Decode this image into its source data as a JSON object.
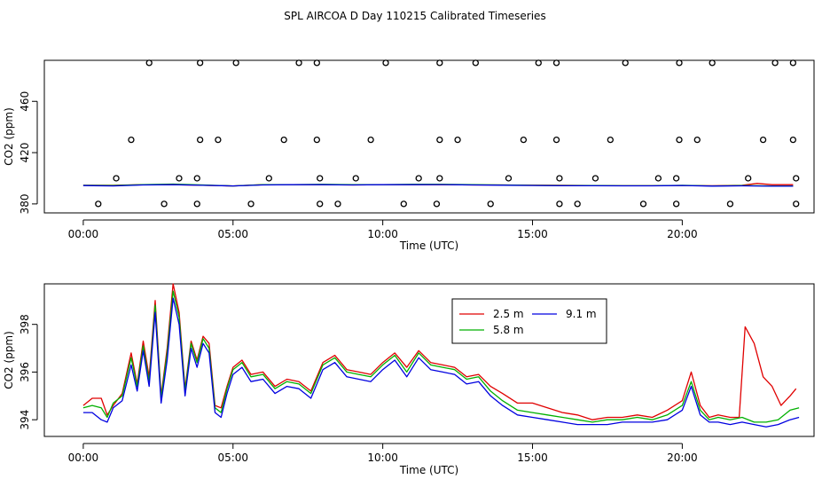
{
  "title": "SPL AIRCOA D  Day 110215  Calibrated Timeseries",
  "colors": {
    "red": "#e00000",
    "green": "#00b000",
    "blue": "#0000e0",
    "black": "#000000"
  },
  "chart_data": [
    {
      "type": "scatter",
      "xlabel": "Time (UTC)",
      "ylabel": "CO2 (ppm)",
      "xlim": [
        -1.3,
        24.4
      ],
      "ylim": [
        373,
        492
      ],
      "xticks": [
        0,
        5,
        10,
        15,
        20
      ],
      "xtick_labels": [
        "00:00",
        "05:00",
        "10:00",
        "15:00",
        "20:00"
      ],
      "yticks": [
        380,
        420,
        460
      ],
      "ytick_labels": [
        "380",
        "420",
        "460"
      ],
      "points": [
        [
          0.5,
          380
        ],
        [
          2.7,
          380
        ],
        [
          3.8,
          380
        ],
        [
          5.6,
          380
        ],
        [
          7.9,
          380
        ],
        [
          8.5,
          380
        ],
        [
          10.7,
          380
        ],
        [
          11.8,
          380
        ],
        [
          13.6,
          380
        ],
        [
          15.9,
          380
        ],
        [
          16.5,
          380
        ],
        [
          18.7,
          380
        ],
        [
          19.8,
          380
        ],
        [
          21.6,
          380
        ],
        [
          23.8,
          380
        ],
        [
          1.1,
          400
        ],
        [
          3.2,
          400
        ],
        [
          3.8,
          400
        ],
        [
          6.2,
          400
        ],
        [
          7.9,
          400
        ],
        [
          9.1,
          400
        ],
        [
          11.2,
          400
        ],
        [
          11.9,
          400
        ],
        [
          14.2,
          400
        ],
        [
          15.9,
          400
        ],
        [
          17.1,
          400
        ],
        [
          19.2,
          400
        ],
        [
          19.8,
          400
        ],
        [
          22.2,
          400
        ],
        [
          23.8,
          400
        ],
        [
          1.6,
          430
        ],
        [
          3.9,
          430
        ],
        [
          4.5,
          430
        ],
        [
          6.7,
          430
        ],
        [
          7.8,
          430
        ],
        [
          9.6,
          430
        ],
        [
          11.9,
          430
        ],
        [
          12.5,
          430
        ],
        [
          14.7,
          430
        ],
        [
          15.8,
          430
        ],
        [
          17.6,
          430
        ],
        [
          19.9,
          430
        ],
        [
          20.5,
          430
        ],
        [
          22.7,
          430
        ],
        [
          23.7,
          430
        ],
        [
          2.2,
          490
        ],
        [
          3.9,
          490
        ],
        [
          5.1,
          490
        ],
        [
          7.2,
          490
        ],
        [
          7.8,
          490
        ],
        [
          10.1,
          490
        ],
        [
          11.9,
          490
        ],
        [
          13.1,
          490
        ],
        [
          15.2,
          490
        ],
        [
          15.8,
          490
        ],
        [
          18.1,
          490
        ],
        [
          19.9,
          490
        ],
        [
          21.0,
          490
        ],
        [
          23.1,
          490
        ],
        [
          23.7,
          490
        ]
      ],
      "series": [
        {
          "color": "red",
          "x": [
            0,
            1,
            2,
            3,
            4,
            5,
            6,
            7,
            8,
            9,
            10,
            11,
            12,
            13,
            14,
            15,
            16,
            17,
            18,
            19,
            20,
            21,
            22,
            22.5,
            23,
            23.7
          ],
          "values": [
            394.5,
            394.5,
            395,
            395,
            394.5,
            394,
            395,
            395,
            395,
            394.8,
            395,
            395,
            395,
            394.8,
            394.8,
            394.6,
            394.5,
            394.3,
            394.2,
            394.2,
            394.4,
            394.2,
            394.5,
            396,
            395,
            395
          ]
        },
        {
          "color": "green",
          "x": [
            0,
            1,
            2,
            3,
            4,
            5,
            6,
            7,
            8,
            9,
            10,
            11,
            12,
            13,
            14,
            15,
            16,
            17,
            18,
            19,
            20,
            21,
            22,
            23,
            23.7
          ],
          "values": [
            394.5,
            394.3,
            395,
            395.5,
            394.8,
            394,
            395,
            395,
            395.3,
            395,
            395,
            395.3,
            395.3,
            395,
            394.8,
            394.5,
            394.3,
            394.3,
            394.2,
            394.2,
            394.5,
            394,
            394.3,
            394,
            394
          ]
        },
        {
          "color": "blue",
          "x": [
            0,
            1,
            2,
            3,
            4,
            5,
            6,
            7,
            8,
            9,
            10,
            11,
            12,
            13,
            14,
            15,
            16,
            17,
            18,
            19,
            20,
            21,
            22,
            23,
            23.7
          ],
          "values": [
            394.3,
            394,
            394.8,
            395,
            394.5,
            394,
            394.8,
            395,
            395,
            394.8,
            395,
            395,
            395.1,
            394.8,
            394.6,
            394.4,
            394.2,
            394.2,
            394.1,
            394.1,
            394.4,
            393.9,
            394.1,
            393.8,
            393.8
          ]
        }
      ]
    },
    {
      "type": "line",
      "xlabel": "Time (UTC)",
      "ylabel": "CO2 (ppm)",
      "xlim": [
        -1.3,
        24.4
      ],
      "ylim": [
        393.3,
        399.7
      ],
      "xticks": [
        0,
        5,
        10,
        15,
        20
      ],
      "xtick_labels": [
        "00:00",
        "05:00",
        "10:00",
        "15:00",
        "20:00"
      ],
      "yticks": [
        394,
        396,
        398
      ],
      "ytick_labels": [
        "394",
        "396",
        "398"
      ],
      "legend_position": "top-center",
      "series": [
        {
          "name": "2.5 m",
          "color": "red",
          "x": [
            0,
            0.3,
            0.6,
            0.8,
            1.0,
            1.3,
            1.6,
            1.8,
            2.0,
            2.2,
            2.4,
            2.6,
            2.8,
            3.0,
            3.2,
            3.4,
            3.6,
            3.8,
            4.0,
            4.2,
            4.4,
            4.6,
            4.8,
            5.0,
            5.3,
            5.6,
            6.0,
            6.4,
            6.8,
            7.2,
            7.6,
            8.0,
            8.4,
            8.8,
            9.2,
            9.6,
            10.0,
            10.4,
            10.8,
            11.2,
            11.6,
            12.0,
            12.4,
            12.8,
            13.2,
            13.6,
            14.0,
            14.5,
            15.0,
            15.5,
            16.0,
            16.5,
            17.0,
            17.5,
            18.0,
            18.5,
            19.0,
            19.5,
            20.0,
            20.3,
            20.6,
            20.9,
            21.2,
            21.6,
            21.9,
            22.1,
            22.4,
            22.7,
            23.0,
            23.3,
            23.6,
            23.8
          ],
          "values": [
            394.6,
            394.9,
            394.9,
            394.2,
            394.6,
            395.1,
            396.8,
            395.5,
            397.3,
            395.8,
            399.0,
            395.0,
            397.0,
            399.7,
            398.5,
            395.3,
            397.3,
            396.5,
            397.5,
            397.2,
            394.6,
            394.5,
            395.4,
            396.2,
            396.5,
            395.9,
            396.0,
            395.4,
            395.7,
            395.6,
            395.2,
            396.4,
            396.7,
            396.1,
            396.0,
            395.9,
            396.4,
            396.8,
            396.2,
            396.9,
            396.4,
            396.3,
            396.2,
            395.8,
            395.9,
            395.4,
            395.1,
            394.7,
            394.7,
            394.5,
            394.3,
            394.2,
            394.0,
            394.1,
            394.1,
            394.2,
            394.1,
            394.4,
            394.8,
            396.0,
            394.6,
            394.1,
            394.2,
            394.1,
            394.1,
            397.9,
            397.2,
            395.8,
            395.4,
            394.6,
            395.0,
            395.3
          ]
        },
        {
          "name": "5.8 m",
          "color": "green",
          "x": [
            0,
            0.3,
            0.6,
            0.8,
            1.0,
            1.3,
            1.6,
            1.8,
            2.0,
            2.2,
            2.4,
            2.6,
            2.8,
            3.0,
            3.2,
            3.4,
            3.6,
            3.8,
            4.0,
            4.2,
            4.4,
            4.6,
            4.8,
            5.0,
            5.3,
            5.6,
            6.0,
            6.4,
            6.8,
            7.2,
            7.6,
            8.0,
            8.4,
            8.8,
            9.2,
            9.6,
            10.0,
            10.4,
            10.8,
            11.2,
            11.6,
            12.0,
            12.4,
            12.8,
            13.2,
            13.6,
            14.0,
            14.5,
            15.0,
            15.5,
            16.0,
            16.5,
            17.0,
            17.5,
            18.0,
            18.5,
            19.0,
            19.5,
            20.0,
            20.3,
            20.6,
            20.9,
            21.2,
            21.6,
            22.0,
            22.4,
            22.8,
            23.2,
            23.6,
            23.9
          ],
          "values": [
            394.5,
            394.6,
            394.5,
            394.1,
            394.7,
            395.0,
            396.6,
            395.4,
            397.1,
            395.6,
            398.8,
            394.9,
            396.8,
            399.4,
            398.3,
            395.2,
            397.2,
            396.4,
            397.4,
            397.0,
            394.5,
            394.3,
            395.3,
            396.1,
            396.4,
            395.8,
            395.9,
            395.3,
            395.6,
            395.5,
            395.1,
            396.3,
            396.6,
            396.0,
            395.9,
            395.8,
            396.3,
            396.7,
            396.0,
            396.8,
            396.3,
            396.2,
            396.1,
            395.7,
            395.8,
            395.2,
            394.8,
            394.4,
            394.3,
            394.2,
            394.1,
            394.0,
            393.9,
            394.0,
            394.0,
            394.1,
            394.0,
            394.2,
            394.6,
            395.6,
            394.4,
            394.0,
            394.1,
            394.0,
            394.1,
            393.9,
            393.9,
            394.0,
            394.4,
            394.5
          ]
        },
        {
          "name": "9.1 m",
          "color": "blue",
          "x": [
            0,
            0.3,
            0.6,
            0.8,
            1.0,
            1.3,
            1.6,
            1.8,
            2.0,
            2.2,
            2.4,
            2.6,
            2.8,
            3.0,
            3.2,
            3.4,
            3.6,
            3.8,
            4.0,
            4.2,
            4.4,
            4.6,
            4.8,
            5.0,
            5.3,
            5.6,
            6.0,
            6.4,
            6.8,
            7.2,
            7.6,
            8.0,
            8.4,
            8.8,
            9.2,
            9.6,
            10.0,
            10.4,
            10.8,
            11.2,
            11.6,
            12.0,
            12.4,
            12.8,
            13.2,
            13.6,
            14.0,
            14.5,
            15.0,
            15.5,
            16.0,
            16.5,
            17.0,
            17.5,
            18.0,
            18.5,
            19.0,
            19.5,
            20.0,
            20.3,
            20.6,
            20.9,
            21.2,
            21.6,
            22.0,
            22.4,
            22.8,
            23.2,
            23.6,
            23.9
          ],
          "values": [
            394.3,
            394.3,
            394.0,
            393.9,
            394.5,
            394.8,
            396.3,
            395.2,
            396.9,
            395.4,
            398.5,
            394.7,
            396.5,
            399.1,
            398.0,
            395.0,
            397.0,
            396.2,
            397.2,
            396.8,
            394.3,
            394.1,
            395.1,
            395.9,
            396.2,
            395.6,
            395.7,
            395.1,
            395.4,
            395.3,
            394.9,
            396.1,
            396.4,
            395.8,
            395.7,
            395.6,
            396.1,
            396.5,
            395.8,
            396.6,
            396.1,
            396.0,
            395.9,
            395.5,
            395.6,
            395.0,
            394.6,
            394.2,
            394.1,
            394.0,
            393.9,
            393.8,
            393.8,
            393.8,
            393.9,
            393.9,
            393.9,
            394.0,
            394.4,
            395.4,
            394.2,
            393.9,
            393.9,
            393.8,
            393.9,
            393.8,
            393.7,
            393.8,
            394.0,
            394.1
          ]
        }
      ]
    }
  ]
}
